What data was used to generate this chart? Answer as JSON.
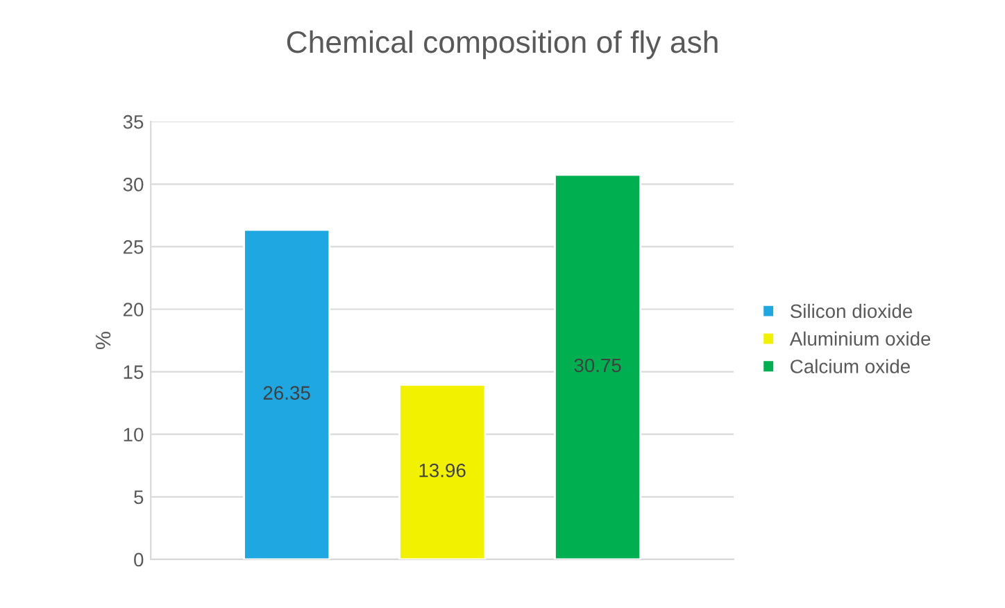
{
  "chart_data": {
    "type": "bar",
    "title": "Chemical composition of fly ash",
    "ylabel": "%",
    "categories": [
      null
    ],
    "series": [
      {
        "name": "Silicon dioxide",
        "color": "#1ea7e1",
        "values": [
          26.35
        ]
      },
      {
        "name": "Aluminium oxide",
        "color": "#f2f200",
        "values": [
          13.96
        ]
      },
      {
        "name": "Calcium oxide",
        "color": "#00b050",
        "values": [
          30.75
        ]
      }
    ],
    "ylim": [
      0,
      35
    ],
    "yticks": [
      0,
      5,
      10,
      15,
      20,
      25,
      30,
      35
    ],
    "grid": "y",
    "legend": "right",
    "data_labels": true
  }
}
